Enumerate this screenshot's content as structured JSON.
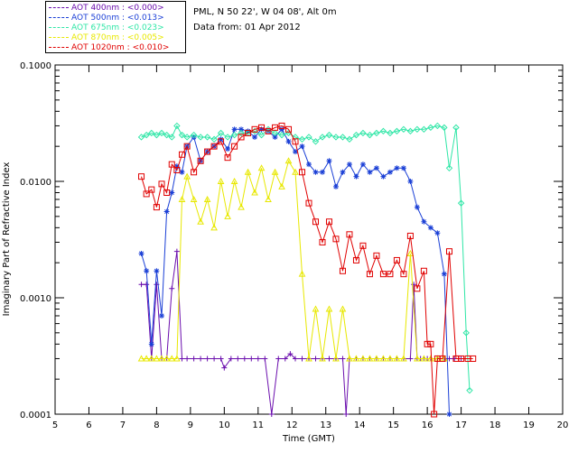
{
  "header": {
    "site": "PML, N 50 22', W 04 08', Alt 0m",
    "date": "Data from: 01 Apr 2012"
  },
  "legend": [
    {
      "label": "AOT  400nm : <0.000>",
      "color": "#6a0dad"
    },
    {
      "label": "AOT  500nm : <0.013>",
      "color": "#1a3fd6"
    },
    {
      "label": "AOT  675nm : <0.023>",
      "color": "#2ee6a6"
    },
    {
      "label": "AOT  870nm : <0.005>",
      "color": "#e8e800"
    },
    {
      "label": "AOT 1020nm : <0.010>",
      "color": "#e00000"
    }
  ],
  "chart_data": {
    "type": "line",
    "xlabel": "Time (GMT)",
    "ylabel": "Imaginary Part of Refractive Index",
    "xlim": [
      5,
      20
    ],
    "ylim": [
      0.0001,
      0.1
    ],
    "yscale": "log",
    "x_ticks": [
      5,
      6,
      7,
      8,
      9,
      10,
      11,
      12,
      13,
      14,
      15,
      16,
      17,
      18,
      19,
      20
    ],
    "y_ticks": [
      {
        "value": 0.0001,
        "label": "0.0001"
      },
      {
        "value": 0.001,
        "label": "0.0010"
      },
      {
        "value": 0.01,
        "label": "0.0100"
      },
      {
        "value": 0.1,
        "label": "0.1000"
      }
    ],
    "series": [
      {
        "name": "AOT  400nm",
        "color": "#6a0dad",
        "marker": "plus",
        "x": [
          7.55,
          7.7,
          7.85,
          8.0,
          8.15,
          8.3,
          8.45,
          8.6,
          8.75,
          8.9,
          9.1,
          9.3,
          9.5,
          9.7,
          9.9,
          10.0,
          10.2,
          10.4,
          10.6,
          10.8,
          11.0,
          11.2,
          11.4,
          11.6,
          11.8,
          11.95,
          12.1,
          12.3,
          12.5,
          12.7,
          12.9,
          13.1,
          13.3,
          13.5,
          13.6,
          13.7,
          13.9,
          14.1,
          14.3,
          14.5,
          14.7,
          14.9,
          15.1,
          15.3,
          15.5,
          15.6,
          15.7,
          15.8,
          15.9,
          16.0,
          16.1,
          16.3,
          16.5,
          16.65,
          16.8,
          17.0
        ],
        "y": [
          0.0013,
          0.0013,
          0.0003,
          0.0013,
          0.0003,
          0.0003,
          0.0012,
          0.0025,
          0.0003,
          0.0003,
          0.0003,
          0.0003,
          0.0003,
          0.0003,
          0.0003,
          0.00025,
          0.0003,
          0.0003,
          0.0003,
          0.0003,
          0.0003,
          0.0003,
          0.0001,
          0.0003,
          0.0003,
          0.00033,
          0.0003,
          0.0003,
          0.0003,
          0.0003,
          0.0003,
          0.0003,
          0.0003,
          0.0003,
          0.0001,
          0.0003,
          0.0003,
          0.0003,
          0.0003,
          0.0003,
          0.0003,
          0.0003,
          0.0003,
          0.0003,
          0.0003,
          0.0013,
          0.0003,
          0.0003,
          0.0003,
          0.0003,
          0.0003,
          0.0003,
          0.0003,
          0.0003,
          0.0003,
          0.0003
        ]
      },
      {
        "name": "AOT  500nm",
        "color": "#1a3fd6",
        "marker": "asterisk",
        "x": [
          7.55,
          7.7,
          7.85,
          8.0,
          8.15,
          8.3,
          8.45,
          8.6,
          8.75,
          8.9,
          9.1,
          9.3,
          9.5,
          9.7,
          9.9,
          10.1,
          10.3,
          10.5,
          10.7,
          10.9,
          11.1,
          11.3,
          11.5,
          11.7,
          11.9,
          12.1,
          12.3,
          12.5,
          12.7,
          12.9,
          13.1,
          13.3,
          13.5,
          13.7,
          13.9,
          14.1,
          14.3,
          14.5,
          14.7,
          14.9,
          15.1,
          15.3,
          15.5,
          15.7,
          15.9,
          16.1,
          16.3,
          16.5,
          16.65
        ],
        "y": [
          0.0024,
          0.0017,
          0.0004,
          0.0017,
          0.0007,
          0.0055,
          0.008,
          0.0135,
          0.012,
          0.02,
          0.024,
          0.015,
          0.018,
          0.02,
          0.023,
          0.019,
          0.028,
          0.028,
          0.027,
          0.024,
          0.028,
          0.027,
          0.024,
          0.028,
          0.022,
          0.018,
          0.02,
          0.014,
          0.012,
          0.012,
          0.015,
          0.009,
          0.012,
          0.014,
          0.011,
          0.014,
          0.012,
          0.013,
          0.011,
          0.012,
          0.013,
          0.013,
          0.01,
          0.006,
          0.0045,
          0.004,
          0.0036,
          0.0016,
          0.0001
        ]
      },
      {
        "name": "AOT  675nm",
        "color": "#2ee6a6",
        "marker": "diamond",
        "x": [
          7.55,
          7.7,
          7.85,
          8.0,
          8.15,
          8.3,
          8.45,
          8.6,
          8.75,
          8.9,
          9.1,
          9.3,
          9.5,
          9.7,
          9.9,
          10.1,
          10.3,
          10.5,
          10.7,
          10.9,
          11.1,
          11.3,
          11.5,
          11.7,
          11.9,
          12.1,
          12.3,
          12.5,
          12.7,
          12.9,
          13.1,
          13.3,
          13.5,
          13.7,
          13.9,
          14.1,
          14.3,
          14.5,
          14.7,
          14.9,
          15.1,
          15.3,
          15.5,
          15.7,
          15.9,
          16.1,
          16.3,
          16.5,
          16.65,
          16.85,
          17.0,
          17.15,
          17.25
        ],
        "y": [
          0.024,
          0.025,
          0.026,
          0.025,
          0.026,
          0.025,
          0.024,
          0.03,
          0.025,
          0.024,
          0.025,
          0.024,
          0.024,
          0.023,
          0.026,
          0.024,
          0.025,
          0.026,
          0.026,
          0.027,
          0.025,
          0.028,
          0.026,
          0.025,
          0.026,
          0.024,
          0.023,
          0.024,
          0.022,
          0.024,
          0.025,
          0.024,
          0.024,
          0.023,
          0.025,
          0.026,
          0.025,
          0.026,
          0.027,
          0.026,
          0.027,
          0.028,
          0.027,
          0.028,
          0.028,
          0.029,
          0.03,
          0.029,
          0.013,
          0.029,
          0.0065,
          0.0005,
          0.00016
        ]
      },
      {
        "name": "AOT  870nm",
        "color": "#e8e800",
        "marker": "triangle",
        "x": [
          7.55,
          7.7,
          7.85,
          8.0,
          8.15,
          8.3,
          8.45,
          8.6,
          8.75,
          8.9,
          9.1,
          9.3,
          9.5,
          9.7,
          9.9,
          10.1,
          10.3,
          10.5,
          10.7,
          10.9,
          11.1,
          11.3,
          11.5,
          11.7,
          11.9,
          12.1,
          12.3,
          12.5,
          12.7,
          12.9,
          13.1,
          13.3,
          13.5,
          13.7,
          13.9,
          14.1,
          14.3,
          14.5,
          14.7,
          14.9,
          15.1,
          15.3,
          15.5,
          15.7,
          15.9,
          16.1,
          16.3,
          16.5
        ],
        "y": [
          0.0003,
          0.0003,
          0.0003,
          0.0003,
          0.0003,
          0.0003,
          0.0003,
          0.0003,
          0.007,
          0.011,
          0.007,
          0.0045,
          0.007,
          0.004,
          0.01,
          0.005,
          0.01,
          0.006,
          0.012,
          0.008,
          0.013,
          0.007,
          0.012,
          0.009,
          0.015,
          0.012,
          0.0016,
          0.0003,
          0.0008,
          0.0003,
          0.0008,
          0.0003,
          0.0008,
          0.0003,
          0.0003,
          0.0003,
          0.0003,
          0.0003,
          0.0003,
          0.0003,
          0.0003,
          0.0003,
          0.0024,
          0.0003,
          0.0003,
          0.0003,
          0.0003,
          0.0003
        ]
      },
      {
        "name": "AOT 1020nm",
        "color": "#e00000",
        "marker": "square",
        "x": [
          7.55,
          7.7,
          7.85,
          8.0,
          8.15,
          8.3,
          8.45,
          8.6,
          8.75,
          8.9,
          9.1,
          9.3,
          9.5,
          9.7,
          9.9,
          10.1,
          10.3,
          10.5,
          10.7,
          10.9,
          11.1,
          11.3,
          11.5,
          11.7,
          11.9,
          12.1,
          12.3,
          12.5,
          12.7,
          12.9,
          13.1,
          13.3,
          13.5,
          13.7,
          13.9,
          14.1,
          14.3,
          14.5,
          14.7,
          14.9,
          15.1,
          15.3,
          15.5,
          15.7,
          15.9,
          16.0,
          16.1,
          16.2,
          16.3,
          16.45,
          16.65,
          16.85,
          17.0,
          17.2,
          17.35
        ],
        "y": [
          0.011,
          0.0078,
          0.0085,
          0.006,
          0.0095,
          0.008,
          0.014,
          0.0125,
          0.017,
          0.02,
          0.012,
          0.015,
          0.018,
          0.02,
          0.022,
          0.016,
          0.02,
          0.024,
          0.026,
          0.028,
          0.029,
          0.027,
          0.029,
          0.03,
          0.028,
          0.022,
          0.012,
          0.0065,
          0.0045,
          0.003,
          0.0045,
          0.0032,
          0.0017,
          0.0035,
          0.0021,
          0.0028,
          0.0016,
          0.0023,
          0.0016,
          0.0016,
          0.0021,
          0.0016,
          0.0034,
          0.0012,
          0.0017,
          0.0004,
          0.0004,
          0.0001,
          0.0003,
          0.0003,
          0.0025,
          0.0003,
          0.0003,
          0.0003,
          0.0003
        ]
      }
    ]
  }
}
